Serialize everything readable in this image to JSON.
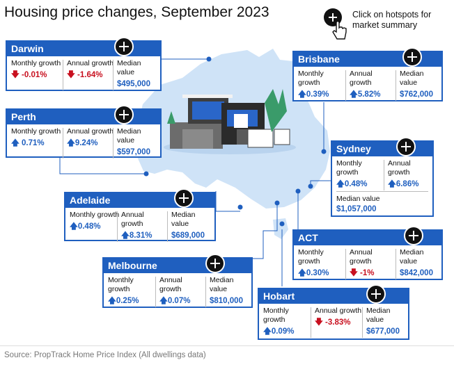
{
  "title": "Housing price changes, September 2023",
  "hint": {
    "text": "Click on hotspots for market summary",
    "icon": "plus-circle-icon",
    "hand": "pointing-hand-icon"
  },
  "colors": {
    "accent": "#1f5fbf",
    "up": "#1f5fbf",
    "down": "#c8101f",
    "map": "#cfe3f7"
  },
  "labels": {
    "monthly": "Monthly growth",
    "annual": "Annual growth",
    "median": "Median value",
    "median_inline": "Median value"
  },
  "cities": {
    "darwin": {
      "name": "Darwin",
      "monthly": "-0.01%",
      "annual": "-1.64%",
      "median": "$495,000",
      "monthly_dir": "down",
      "annual_dir": "down"
    },
    "perth": {
      "name": "Perth",
      "monthly": "0.71%",
      "annual": "9.24%",
      "median": "$597,000",
      "monthly_dir": "up",
      "annual_dir": "up"
    },
    "adelaide": {
      "name": "Adelaide",
      "monthly": "0.48%",
      "annual": "8.31%",
      "median": "$689,000",
      "monthly_dir": "up",
      "annual_dir": "up"
    },
    "melbourne": {
      "name": "Melbourne",
      "monthly": "0.25%",
      "annual": "0.07%",
      "median": "$810,000",
      "monthly_dir": "up",
      "annual_dir": "up"
    },
    "hobart": {
      "name": "Hobart",
      "monthly": "0.09%",
      "annual": "-3.83%",
      "median": "$677,000",
      "monthly_dir": "up",
      "annual_dir": "down"
    },
    "act": {
      "name": "ACT",
      "monthly": "0.30%",
      "annual": "-1%",
      "median": "$842,000",
      "monthly_dir": "up",
      "annual_dir": "down"
    },
    "sydney": {
      "name": "Sydney",
      "monthly": "0.48%",
      "annual": "6.86%",
      "median": "$1,057,000",
      "monthly_dir": "up",
      "annual_dir": "up"
    },
    "brisbane": {
      "name": "Brisbane",
      "monthly": "0.39%",
      "annual": "5.82%",
      "median": "$762,000",
      "monthly_dir": "up",
      "annual_dir": "up"
    }
  },
  "source": "Source: PropTrack Home Price Index (All dwellings data)"
}
